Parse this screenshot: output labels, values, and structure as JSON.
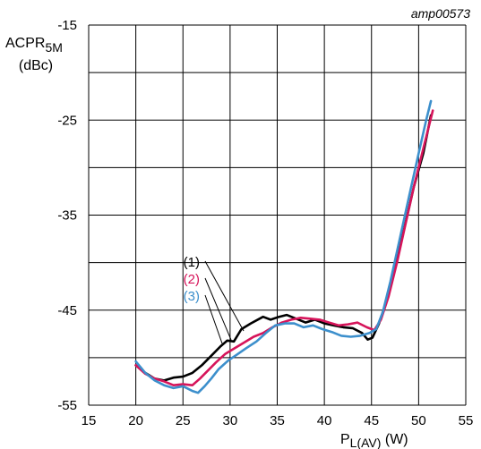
{
  "chart_data": {
    "type": "line",
    "reference_code": "amp00573",
    "ylabel": {
      "main": "ACPR",
      "subscript": "5M",
      "unit": "(dBc)"
    },
    "xlabel": {
      "main": "P",
      "subscript": "L(AV)",
      "unit": " (W)"
    },
    "xlim": [
      15,
      55
    ],
    "ylim": [
      -55,
      -15
    ],
    "x_ticks": [
      15,
      20,
      25,
      30,
      35,
      40,
      45,
      50,
      55
    ],
    "y_tick_labels": [
      -15,
      -25,
      -35,
      -45,
      -55
    ],
    "grid": true,
    "series": [
      {
        "name": "(1)",
        "color": "#000000",
        "points": [
          [
            20,
            -50.8
          ],
          [
            21,
            -51.6
          ],
          [
            22,
            -52.2
          ],
          [
            23,
            -52.4
          ],
          [
            24,
            -52.1
          ],
          [
            25,
            -52.0
          ],
          [
            26,
            -51.6
          ],
          [
            27,
            -50.8
          ],
          [
            28,
            -49.8
          ],
          [
            29,
            -48.8
          ],
          [
            29.7,
            -48.2
          ],
          [
            30.4,
            -48.3
          ],
          [
            31.2,
            -47.0
          ],
          [
            32.2,
            -46.4
          ],
          [
            33.5,
            -45.7
          ],
          [
            34.3,
            -46.0
          ],
          [
            35.2,
            -45.7
          ],
          [
            36,
            -45.5
          ],
          [
            37,
            -45.9
          ],
          [
            38,
            -46.3
          ],
          [
            39,
            -46.0
          ],
          [
            40,
            -46.4
          ],
          [
            41,
            -46.6
          ],
          [
            42,
            -46.8
          ],
          [
            43,
            -46.9
          ],
          [
            44,
            -47.4
          ],
          [
            44.6,
            -48.1
          ],
          [
            45.1,
            -47.9
          ],
          [
            45.8,
            -46.4
          ],
          [
            46.6,
            -44.0
          ],
          [
            47.5,
            -40.5
          ],
          [
            48.5,
            -36.3
          ],
          [
            49.5,
            -32.0
          ],
          [
            50.5,
            -28.5
          ],
          [
            51.3,
            -24.5
          ]
        ]
      },
      {
        "name": "(2)",
        "color": "#d6145a",
        "points": [
          [
            20,
            -50.8
          ],
          [
            21,
            -51.7
          ],
          [
            22,
            -52.2
          ],
          [
            23,
            -52.5
          ],
          [
            24,
            -52.9
          ],
          [
            25,
            -52.8
          ],
          [
            26,
            -52.9
          ],
          [
            26.8,
            -52.2
          ],
          [
            27.6,
            -51.4
          ],
          [
            28.5,
            -50.5
          ],
          [
            29.5,
            -49.6
          ],
          [
            30.5,
            -49.0
          ],
          [
            31.5,
            -48.4
          ],
          [
            32.5,
            -47.8
          ],
          [
            33.5,
            -47.4
          ],
          [
            34.5,
            -46.8
          ],
          [
            35.5,
            -46.3
          ],
          [
            36.5,
            -46.0
          ],
          [
            37.5,
            -45.8
          ],
          [
            38.5,
            -45.9
          ],
          [
            39.5,
            -46.0
          ],
          [
            40.5,
            -46.3
          ],
          [
            41.5,
            -46.6
          ],
          [
            42.5,
            -46.5
          ],
          [
            43.5,
            -46.3
          ],
          [
            44.5,
            -46.8
          ],
          [
            45.3,
            -47.1
          ],
          [
            46,
            -46.0
          ],
          [
            46.8,
            -43.6
          ],
          [
            47.7,
            -40.0
          ],
          [
            48.6,
            -36.0
          ],
          [
            49.5,
            -32.0
          ],
          [
            50.5,
            -28.0
          ],
          [
            51.5,
            -24.0
          ]
        ]
      },
      {
        "name": "(3)",
        "color": "#3c8fcc",
        "points": [
          [
            20,
            -50.4
          ],
          [
            21,
            -51.6
          ],
          [
            22,
            -52.4
          ],
          [
            23,
            -52.9
          ],
          [
            24,
            -53.2
          ],
          [
            25,
            -53.0
          ],
          [
            26,
            -53.5
          ],
          [
            26.6,
            -53.7
          ],
          [
            27.3,
            -53.0
          ],
          [
            28,
            -52.2
          ],
          [
            28.8,
            -51.2
          ],
          [
            29.8,
            -50.3
          ],
          [
            30.7,
            -49.7
          ],
          [
            31.7,
            -49.0
          ],
          [
            32.8,
            -48.3
          ],
          [
            33.8,
            -47.4
          ],
          [
            34.8,
            -46.6
          ],
          [
            35.8,
            -46.4
          ],
          [
            36.8,
            -46.4
          ],
          [
            37.8,
            -46.8
          ],
          [
            38.8,
            -46.6
          ],
          [
            39.8,
            -47.0
          ],
          [
            40.8,
            -47.3
          ],
          [
            41.8,
            -47.7
          ],
          [
            42.8,
            -47.8
          ],
          [
            43.8,
            -47.7
          ],
          [
            44.8,
            -47.4
          ],
          [
            45.5,
            -47.0
          ],
          [
            46.2,
            -45.2
          ],
          [
            47,
            -42.0
          ],
          [
            48,
            -37.5
          ],
          [
            49,
            -33.0
          ],
          [
            50,
            -28.5
          ],
          [
            50.8,
            -25.0
          ],
          [
            51.3,
            -23.0
          ]
        ]
      }
    ]
  }
}
